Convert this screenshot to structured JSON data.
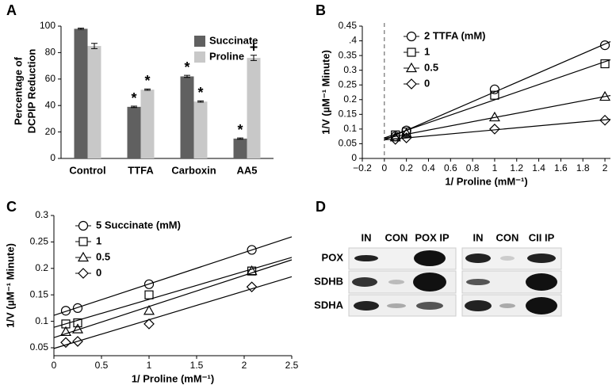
{
  "chart_data": [
    {
      "type": "bar",
      "panel": "A",
      "ylabel": [
        "Percentage of",
        "DCPIP Reduction"
      ],
      "categories": [
        "Control",
        "TTFA",
        "Carboxin",
        "AA5"
      ],
      "series": [
        {
          "name": "Succinate",
          "color": "#606060",
          "values": [
            98,
            39,
            62,
            15
          ],
          "errors": [
            0.5,
            0.5,
            0.8,
            0.5
          ],
          "markers": [
            null,
            "*",
            "*",
            "*"
          ]
        },
        {
          "name": "Proline",
          "color": "#c8c8c8",
          "values": [
            85,
            52,
            43,
            76
          ],
          "errors": [
            2,
            0.5,
            0.5,
            2
          ],
          "markers": [
            null,
            "*",
            "*",
            "+"
          ]
        }
      ],
      "ylim": [
        0,
        100
      ],
      "yticks": [
        0,
        20,
        40,
        60,
        80,
        100
      ]
    },
    {
      "type": "scatter",
      "panel": "B",
      "ylabel": "1/V (µM⁻¹ Minute)",
      "xlabel": "1/ Proline (mM⁻¹)",
      "series": [
        {
          "name": "2 TTFA (mM)",
          "marker": "circle",
          "x": [
            0.1,
            0.2,
            1,
            2
          ],
          "values": [
            0.075,
            0.095,
            0.235,
            0.385
          ]
        },
        {
          "name": "1",
          "marker": "square",
          "x": [
            0.1,
            0.2,
            1,
            2
          ],
          "values": [
            0.08,
            0.09,
            0.215,
            0.322
          ]
        },
        {
          "name": "0.5",
          "marker": "triangle",
          "x": [
            0.1,
            0.2,
            1,
            2
          ],
          "values": [
            0.072,
            0.085,
            0.14,
            0.21
          ]
        },
        {
          "name": "0",
          "marker": "diamond",
          "x": [
            0.1,
            0.2,
            1,
            2
          ],
          "values": [
            0.065,
            0.07,
            0.1,
            0.13
          ]
        }
      ],
      "xlim": [
        -0.2,
        2.05
      ],
      "xticks": [
        {
          "value": -0.2,
          "label": "−0.2"
        },
        0,
        0.2,
        0.4,
        0.6,
        0.8,
        1,
        1.2,
        1.4,
        1.6,
        1.8,
        2
      ],
      "ylim": [
        0,
        0.45
      ],
      "yticks": [
        0,
        0.05,
        0.1,
        0.15,
        0.2,
        0.25,
        0.3,
        0.35,
        {
          "value": 0.4,
          "label": ".4"
        },
        0.45
      ]
    },
    {
      "type": "scatter",
      "panel": "C",
      "ylabel": "1/V (µM⁻¹ Minute)",
      "xlabel": "1/ Proline (mM⁻¹)",
      "series": [
        {
          "name": "5 Succinate (mM)",
          "marker": "circle",
          "x": [
            0.125,
            0.25,
            1,
            2.08
          ],
          "values": [
            0.12,
            0.125,
            0.17,
            0.235
          ]
        },
        {
          "name": "1",
          "marker": "square",
          "x": [
            0.125,
            0.25,
            1,
            2.08
          ],
          "values": [
            0.095,
            0.097,
            0.15,
            0.195
          ]
        },
        {
          "name": "0.5",
          "marker": "triangle",
          "x": [
            0.125,
            0.25,
            1,
            2.08
          ],
          "values": [
            0.08,
            0.085,
            0.12,
            0.195
          ]
        },
        {
          "name": "0",
          "marker": "diamond",
          "x": [
            0.125,
            0.25,
            1,
            2.08
          ],
          "values": [
            0.06,
            0.062,
            0.095,
            0.165
          ]
        }
      ],
      "xlim": [
        0,
        2.5
      ],
      "xticks": [
        0,
        0.5,
        1,
        1.5,
        2,
        2.5
      ],
      "ylim": [
        0.035,
        0.3
      ],
      "yticks": [
        0.05,
        0.1,
        0.15,
        0.2,
        0.25,
        0.3
      ]
    }
  ],
  "blot": {
    "panel": "D",
    "left_headers": [
      "IN",
      "CON",
      "POX IP"
    ],
    "right_headers": [
      "IN",
      "CON",
      "CII IP"
    ],
    "rows": [
      "POX",
      "SDHB",
      "SDHA"
    ]
  }
}
